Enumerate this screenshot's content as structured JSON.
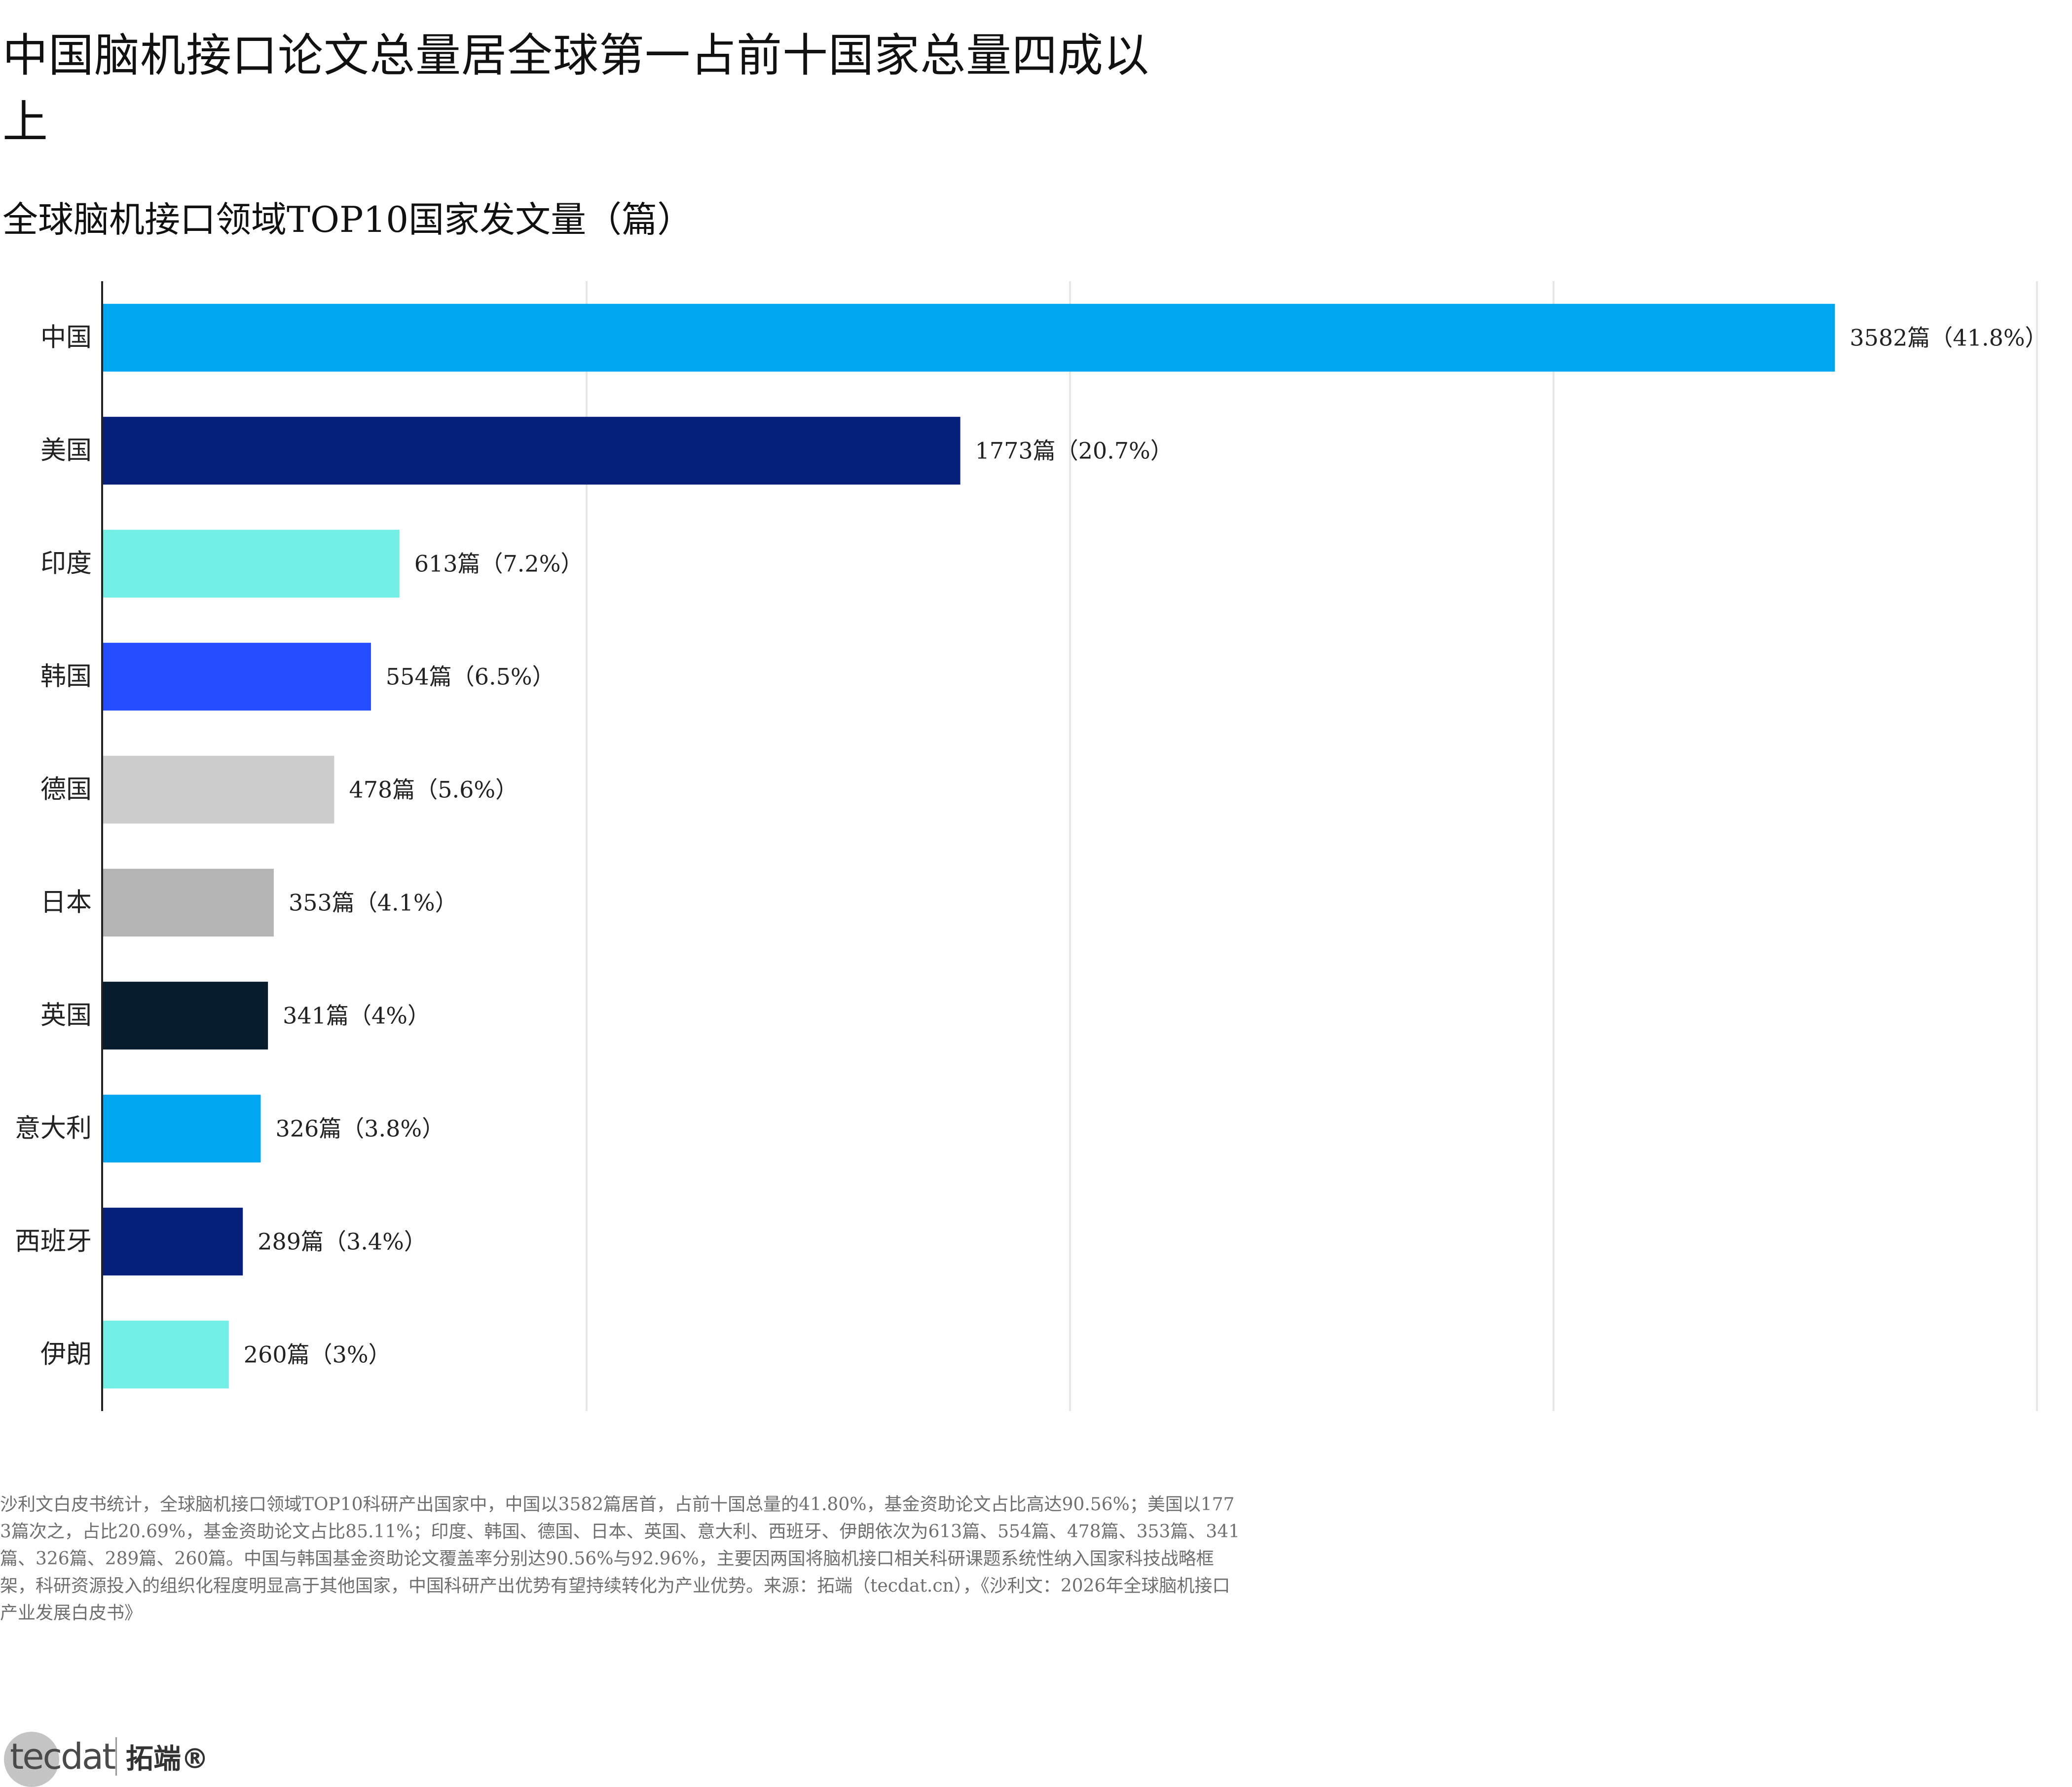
{
  "title": "中国脑机接口论文总量居全球第一占前十国家总量四成以上",
  "chart_data": {
    "type": "bar",
    "orientation": "horizontal",
    "title": "全球脑机接口领域TOP10国家发文量（篇）",
    "categories": [
      "中国",
      "美国",
      "印度",
      "韩国",
      "德国",
      "日本",
      "英国",
      "意大利",
      "西班牙",
      "伊朗"
    ],
    "values": [
      3582,
      1773,
      613,
      554,
      478,
      353,
      341,
      326,
      289,
      260
    ],
    "data_labels": [
      "3582篇（41.8%）",
      "1773篇（20.7%）",
      "613篇（7.2%）",
      "554篇（6.5%）",
      "478篇（5.6%）",
      "353篇（4.1%）",
      "341篇（4%）",
      "326篇（3.8%）",
      "289篇（3.4%）",
      "260篇（3%）"
    ],
    "colors": [
      "#00A6F0",
      "#061F7A",
      "#72EFE4",
      "#234DFF",
      "#CCCCCC",
      "#B4B4B4",
      "#071C2C",
      "#00A6F0",
      "#061F7A",
      "#72EFE4"
    ],
    "xlim": [
      0,
      4000
    ],
    "x_gridlines": [
      1000,
      2000,
      3000,
      4000
    ],
    "grid": true,
    "legend": "none"
  },
  "footnote": "沙利文白皮书统计，全球脑机接口领域TOP10科研产出国家中，中国以3582篇居首，占前十国总量的41.80%，基金资助论文占比高达90.56%；美国以1773篇次之，占比20.69%，基金资助论文占比85.11%；印度、韩国、德国、日本、英国、意大利、西班牙、伊朗依次为613篇、554篇、478篇、353篇、341篇、326篇、289篇、260篇。中国与韩国基金资助论文覆盖率分别达90.56%与92.96%，主要因两国将脑机接口相关科研课题系统性纳入国家科技战略框架，科研资源投入的组织化程度明显高于其他国家，中国科研产出优势有望持续转化为产业优势。来源：拓端（tecdat.cn），《沙利文：2026年全球脑机接口产业发展白皮书》",
  "logo": {
    "word": "tecdat",
    "cn": "拓端®"
  }
}
